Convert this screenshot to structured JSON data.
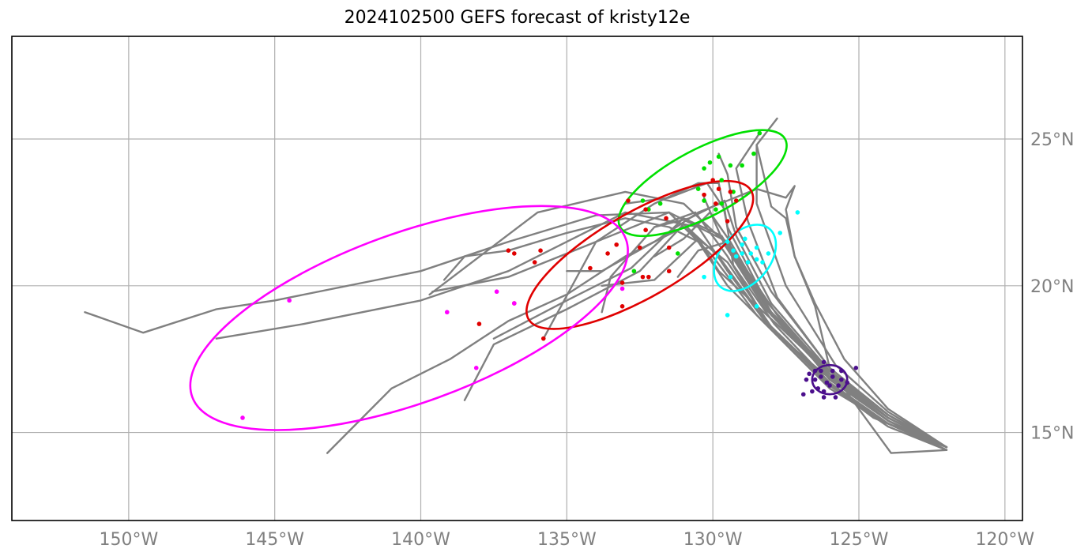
{
  "title": "2024102500 GEFS forecast of kristy12e",
  "map": {
    "lon_range": [
      -154,
      -119.4
    ],
    "lat_range": [
      12,
      28.5
    ],
    "grid": true,
    "x_ticks": [
      {
        "lon": -150,
        "label": "150°W"
      },
      {
        "lon": -145,
        "label": "145°W"
      },
      {
        "lon": -140,
        "label": "140°W"
      },
      {
        "lon": -135,
        "label": "135°W"
      },
      {
        "lon": -130,
        "label": "130°W"
      },
      {
        "lon": -125,
        "label": "125°W"
      },
      {
        "lon": -120,
        "label": "120°W"
      }
    ],
    "y_ticks": [
      {
        "lat": 15,
        "label": "15°N"
      },
      {
        "lat": 20,
        "label": "20°N"
      },
      {
        "lat": 25,
        "label": "25°N"
      }
    ],
    "y_tick_side": "right",
    "colors": {
      "tracks": "#808080",
      "grid": "#b0b0b0",
      "labels": "#808080"
    }
  },
  "chart_data": {
    "type": "map-tracks",
    "title": "2024102500 GEFS forecast of kristy12e",
    "tracks": [
      [
        [
          -122,
          14.5
        ],
        [
          -124,
          15.3
        ],
        [
          -126,
          16.5
        ],
        [
          -128,
          18.5
        ],
        [
          -129.5,
          20.5
        ],
        [
          -130.5,
          22
        ],
        [
          -131.5,
          22.2
        ],
        [
          -133,
          22.5
        ],
        [
          -135,
          21.5
        ],
        [
          -137,
          20.5
        ],
        [
          -140,
          19.5
        ],
        [
          -144,
          18.7
        ],
        [
          -147,
          18.2
        ]
      ],
      [
        [
          -122,
          14.5
        ],
        [
          -124.5,
          15.5
        ],
        [
          -126.5,
          17
        ],
        [
          -128.5,
          19
        ],
        [
          -130,
          21
        ],
        [
          -131.5,
          22.5
        ],
        [
          -134,
          22.4
        ],
        [
          -137,
          21.5
        ],
        [
          -140,
          20.5
        ],
        [
          -145,
          19.5
        ],
        [
          -147,
          19.2
        ],
        [
          -149.5,
          18.4
        ],
        [
          -151.5,
          19.1
        ]
      ],
      [
        [
          -122,
          14.4
        ],
        [
          -124,
          15.2
        ],
        [
          -126,
          16.6
        ],
        [
          -128,
          18.6
        ],
        [
          -129.5,
          20.8
        ],
        [
          -131,
          22
        ],
        [
          -133,
          21
        ],
        [
          -135,
          19.7
        ],
        [
          -137,
          18.8
        ],
        [
          -139,
          17.5
        ],
        [
          -141,
          16.5
        ],
        [
          -143.2,
          14.3
        ]
      ],
      [
        [
          -122,
          14.4
        ],
        [
          -124.2,
          15.4
        ],
        [
          -126.2,
          16.8
        ],
        [
          -128.2,
          18.8
        ],
        [
          -129.8,
          21
        ],
        [
          -131,
          22.1
        ],
        [
          -132.5,
          20.5
        ],
        [
          -135,
          19.2
        ],
        [
          -137.5,
          18
        ],
        [
          -138.5,
          16.1
        ]
      ],
      [
        [
          -122,
          14.5
        ],
        [
          -124,
          15.5
        ],
        [
          -126,
          17
        ],
        [
          -128,
          19
        ],
        [
          -129.6,
          21.5
        ],
        [
          -131,
          22.8
        ],
        [
          -133,
          23.2
        ],
        [
          -136,
          22.5
        ],
        [
          -139.7,
          19.7
        ]
      ],
      [
        [
          -122,
          14.5
        ],
        [
          -124,
          15.6
        ],
        [
          -126,
          17.1
        ],
        [
          -128,
          19.1
        ],
        [
          -129.5,
          21.5
        ],
        [
          -131.5,
          22.5
        ],
        [
          -134,
          21.5
        ],
        [
          -135.8,
          18.2
        ]
      ],
      [
        [
          -122,
          14.4
        ],
        [
          -124,
          15.4
        ],
        [
          -126,
          16.9
        ],
        [
          -128,
          19
        ],
        [
          -129.7,
          21.7
        ],
        [
          -131,
          22.3
        ],
        [
          -132.8,
          20.6
        ],
        [
          -135,
          19.5
        ],
        [
          -137.5,
          18.2
        ]
      ],
      [
        [
          -122,
          14.4
        ],
        [
          -124,
          15.3
        ],
        [
          -126,
          16.7
        ],
        [
          -128.1,
          18.7
        ],
        [
          -129.5,
          21
        ],
        [
          -130.6,
          22.5
        ],
        [
          -132,
          22
        ],
        [
          -133.5,
          20.3
        ],
        [
          -133.8,
          19.1
        ]
      ],
      [
        [
          -122,
          14.5
        ],
        [
          -124,
          15.5
        ],
        [
          -126,
          17
        ],
        [
          -128.2,
          19.5
        ],
        [
          -129.5,
          22
        ],
        [
          -129.8,
          23.5
        ],
        [
          -130.5,
          23.5
        ],
        [
          -132,
          22.8
        ],
        [
          -134,
          21.5
        ],
        [
          -137,
          20.3
        ],
        [
          -139.6,
          19.8
        ]
      ],
      [
        [
          -122,
          14.5
        ],
        [
          -124,
          15.6
        ],
        [
          -126,
          17.2
        ],
        [
          -128,
          19.8
        ],
        [
          -129.2,
          22
        ],
        [
          -129.5,
          23.8
        ],
        [
          -129.8,
          24.5
        ]
      ],
      [
        [
          -122,
          14.5
        ],
        [
          -124,
          15.6
        ],
        [
          -126,
          17.2
        ],
        [
          -127.8,
          19.6
        ],
        [
          -128.8,
          22.2
        ],
        [
          -129.2,
          24
        ],
        [
          -128.4,
          25.2
        ]
      ],
      [
        [
          -122,
          14.5
        ],
        [
          -124,
          15.7
        ],
        [
          -125.8,
          17.3
        ],
        [
          -127.5,
          20
        ],
        [
          -128.5,
          22.8
        ],
        [
          -128.5,
          24.8
        ],
        [
          -127.8,
          25.7
        ]
      ],
      [
        [
          -122,
          14.5
        ],
        [
          -124,
          15.8
        ],
        [
          -125.5,
          17.5
        ],
        [
          -126.5,
          19.4
        ],
        [
          -127.2,
          21
        ],
        [
          -127.5,
          22.6
        ],
        [
          -127.2,
          23.4
        ],
        [
          -127.5,
          23
        ],
        [
          -128.5,
          23.3
        ],
        [
          -130.5,
          22.5
        ],
        [
          -132,
          21.5
        ],
        [
          -133.8,
          20.5
        ],
        [
          -135,
          20.5
        ]
      ],
      [
        [
          -122,
          14.4
        ],
        [
          -123.9,
          14.3
        ],
        [
          -125,
          15.8
        ],
        [
          -126,
          17.2
        ],
        [
          -126.5,
          19.3
        ],
        [
          -127.2,
          21
        ],
        [
          -127.5,
          22.3
        ],
        [
          -128,
          22.7
        ],
        [
          -128.5,
          24.8
        ]
      ],
      [
        [
          -122,
          14.5
        ],
        [
          -124,
          15.4
        ],
        [
          -126,
          16.8
        ],
        [
          -127.8,
          19
        ],
        [
          -129.5,
          21.5
        ],
        [
          -130.5,
          21.2
        ],
        [
          -131.2,
          20.3
        ]
      ],
      [
        [
          -122,
          14.5
        ],
        [
          -124,
          15.4
        ],
        [
          -126.2,
          17
        ],
        [
          -128,
          18.5
        ],
        [
          -129.5,
          20
        ],
        [
          -130.5,
          21.5
        ],
        [
          -131.5,
          22
        ],
        [
          -133,
          22.3
        ],
        [
          -135,
          21.8
        ],
        [
          -137,
          21.2
        ],
        [
          -138.5,
          21
        ],
        [
          -139.2,
          20.2
        ]
      ],
      [
        [
          -122,
          14.5
        ],
        [
          -124,
          15.5
        ],
        [
          -126,
          17.1
        ],
        [
          -128.2,
          19.2
        ],
        [
          -129.6,
          21.4
        ],
        [
          -130.3,
          23
        ]
      ],
      [
        [
          -122,
          14.4
        ],
        [
          -124,
          15.4
        ],
        [
          -125.9,
          16.9
        ],
        [
          -127.6,
          18.5
        ],
        [
          -129.8,
          20.5
        ],
        [
          -130.5,
          21.6
        ],
        [
          -132,
          20.2
        ],
        [
          -133.8,
          20
        ]
      ],
      [
        [
          -122,
          14.4
        ],
        [
          -124,
          15.3
        ],
        [
          -126,
          16.7
        ],
        [
          -127.9,
          18.7
        ],
        [
          -129.3,
          20.7
        ],
        [
          -129.6,
          22.6
        ],
        [
          -130.2,
          23.5
        ],
        [
          -131.5,
          23
        ],
        [
          -133,
          22.8
        ]
      ],
      [
        [
          -122,
          14.5
        ],
        [
          -124,
          15.5
        ],
        [
          -126,
          17
        ],
        [
          -128,
          19.1
        ],
        [
          -129.4,
          21.5
        ],
        [
          -130.1,
          22.5
        ],
        [
          -131,
          21.6
        ],
        [
          -132,
          21
        ]
      ],
      [
        [
          -122,
          14.5
        ],
        [
          -124,
          15.5
        ],
        [
          -126,
          17.1
        ],
        [
          -128,
          19.4
        ],
        [
          -129.2,
          21.7
        ],
        [
          -129.6,
          22.9
        ],
        [
          -130.8,
          22.3
        ],
        [
          -132,
          22
        ]
      ]
    ],
    "points": {
      "purple": {
        "color": "#4b0f8c",
        "pts": [
          [
            -126.1,
            16.7
          ],
          [
            -126.5,
            16.8
          ],
          [
            -126.3,
            17.1
          ],
          [
            -125.9,
            16.9
          ],
          [
            -126.2,
            16.4
          ],
          [
            -126.7,
            17
          ],
          [
            -125.7,
            16.6
          ],
          [
            -126.4,
            16.5
          ],
          [
            -125.9,
            17.1
          ],
          [
            -126.2,
            16.2
          ],
          [
            -126.8,
            16.8
          ],
          [
            -126.0,
            16.6
          ],
          [
            -125.4,
            16.7
          ],
          [
            -126.6,
            16.4
          ],
          [
            -125.6,
            17.1
          ],
          [
            -126.3,
            16.9
          ],
          [
            -126.9,
            16.3
          ],
          [
            -126.2,
            17.4
          ],
          [
            -125.1,
            17.2
          ],
          [
            -125.8,
            16.2
          ],
          [
            -126.5,
            17.1
          ],
          [
            -125.6,
            16.8
          ]
        ]
      },
      "cyan": {
        "color": "#00ffff",
        "pts": [
          [
            -129.3,
            21.2
          ],
          [
            -129.0,
            21.1
          ],
          [
            -128.7,
            21.1
          ],
          [
            -129.0,
            21.4
          ],
          [
            -128.5,
            20.9
          ],
          [
            -128.8,
            20.8
          ],
          [
            -129.5,
            21.5
          ],
          [
            -128.5,
            21.3
          ],
          [
            -129.2,
            21.0
          ],
          [
            -128.9,
            21.6
          ],
          [
            -127.1,
            22.5
          ],
          [
            -127.7,
            21.8
          ],
          [
            -130.3,
            20.3
          ],
          [
            -129.4,
            20.3
          ],
          [
            -128.5,
            19.3
          ],
          [
            -129.5,
            19.0
          ],
          [
            -128.3,
            20.8
          ],
          [
            -128.1,
            21.1
          ]
        ]
      },
      "green": {
        "color": "#00e000",
        "pts": [
          [
            -128.4,
            25.2
          ],
          [
            -128.6,
            24.5
          ],
          [
            -129.0,
            24.1
          ],
          [
            -129.8,
            24.4
          ],
          [
            -129.4,
            24.1
          ],
          [
            -130.3,
            24.0
          ],
          [
            -129.7,
            23.6
          ],
          [
            -130.5,
            23.3
          ],
          [
            -129.3,
            23.2
          ],
          [
            -129.7,
            22.8
          ],
          [
            -130.3,
            22.9
          ],
          [
            -129.9,
            22.6
          ],
          [
            -131.8,
            22.8
          ],
          [
            -132.2,
            22.6
          ],
          [
            -132.4,
            22.9
          ],
          [
            -131.2,
            21.1
          ],
          [
            -132.7,
            20.5
          ],
          [
            -130.1,
            24.2
          ]
        ]
      },
      "red": {
        "color": "#e00000",
        "pts": [
          [
            -130.0,
            23.6
          ],
          [
            -129.4,
            23.2
          ],
          [
            -129.8,
            23.3
          ],
          [
            -130.3,
            23.1
          ],
          [
            -129.2,
            22.9
          ],
          [
            -129.9,
            22.8
          ],
          [
            -129.5,
            22.2
          ],
          [
            -132.9,
            22.9
          ],
          [
            -132.3,
            22.6
          ],
          [
            -131.6,
            22.3
          ],
          [
            -132.3,
            21.9
          ],
          [
            -131.5,
            21.3
          ],
          [
            -132.5,
            21.3
          ],
          [
            -133.3,
            21.4
          ],
          [
            -133.6,
            21.1
          ],
          [
            -131.5,
            20.5
          ],
          [
            -132.2,
            20.3
          ],
          [
            -134.2,
            20.6
          ],
          [
            -133.1,
            20.1
          ],
          [
            -132.4,
            20.3
          ],
          [
            -135.9,
            21.2
          ],
          [
            -136.8,
            21.1
          ],
          [
            -137.0,
            21.2
          ],
          [
            -136.1,
            20.8
          ],
          [
            -136.8,
            19.4
          ],
          [
            -138.0,
            18.7
          ],
          [
            -135.8,
            18.2
          ],
          [
            -133.1,
            19.3
          ]
        ]
      },
      "magenta": {
        "color": "#ff00ff",
        "pts": [
          [
            -144.5,
            19.5
          ],
          [
            -137.4,
            19.8
          ],
          [
            -139.1,
            19.1
          ],
          [
            -136.8,
            19.4
          ],
          [
            -133.1,
            19.9
          ],
          [
            -138.1,
            17.2
          ],
          [
            -146.1,
            15.5
          ]
        ]
      }
    },
    "ellipses": [
      {
        "color": "#4b0f8c",
        "center": [
          -126.0,
          16.8
        ],
        "rx_deg": 0.6,
        "ry_deg": 0.5,
        "angle": 0
      },
      {
        "color": "#00ffff",
        "center": [
          -128.9,
          20.95
        ],
        "rx_deg": 1.3,
        "ry_deg": 0.85,
        "angle": -50
      },
      {
        "color": "#00e000",
        "center": [
          -130.35,
          23.5
        ],
        "rx_deg": 3.2,
        "ry_deg": 1.15,
        "angle": -28
      },
      {
        "color": "#e00000",
        "center": [
          -132.5,
          21.05
        ],
        "rx_deg": 4.4,
        "ry_deg": 1.45,
        "angle": -30
      },
      {
        "color": "#ff00ff",
        "center": [
          -140.4,
          18.9
        ],
        "rx_deg": 7.9,
        "ry_deg": 2.9,
        "angle": -20
      }
    ]
  }
}
